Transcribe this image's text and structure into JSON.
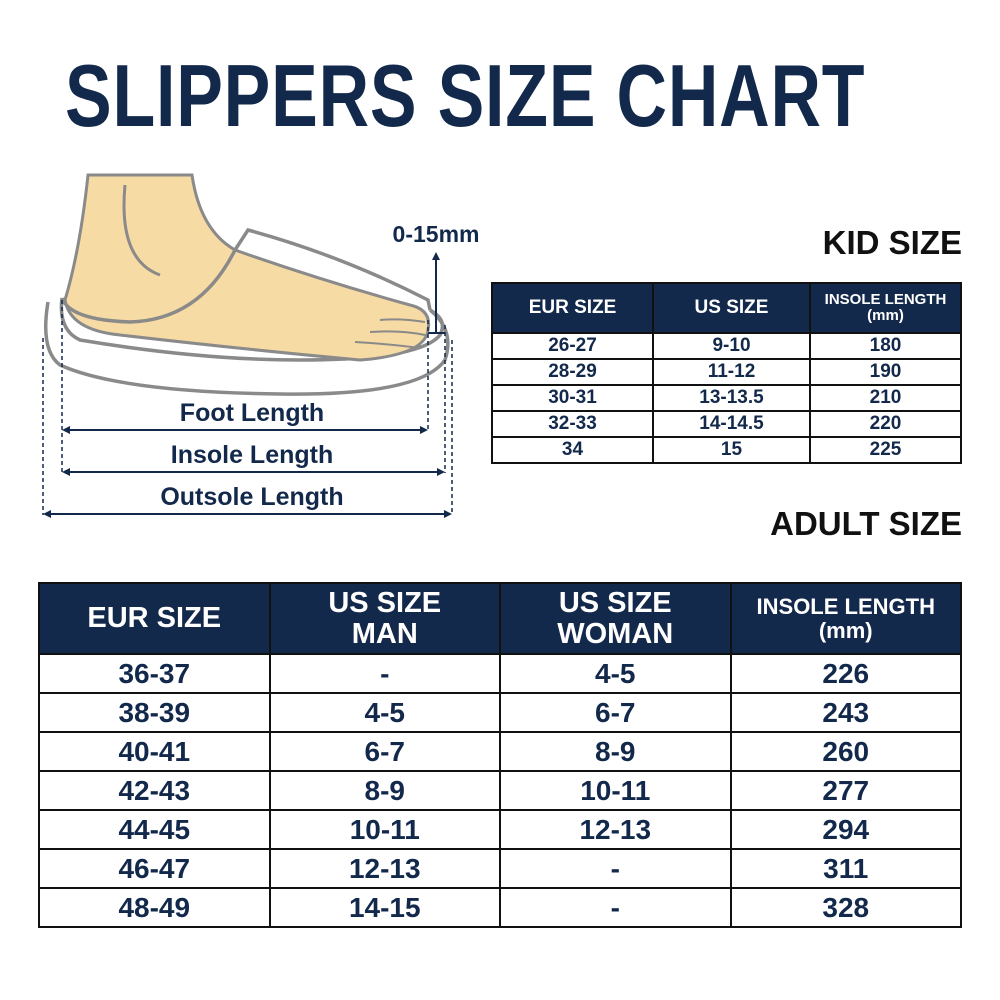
{
  "title": "SLIPPERS SIZE CHART",
  "colors": {
    "navy": "#13294b",
    "skin": "#f7dba4",
    "outline": "#8a8a8a"
  },
  "illustration": {
    "gap_label": "0-15mm",
    "foot_length": "Foot Length",
    "insole_length": "Insole Length",
    "outsole_length": "Outsole Length"
  },
  "kid": {
    "label": "KID SIZE",
    "headers": [
      "EUR SIZE",
      "US SIZE",
      "INSOLE LENGTH",
      "(mm)"
    ],
    "rows": [
      [
        "26-27",
        "9-10",
        "180"
      ],
      [
        "28-29",
        "11-12",
        "190"
      ],
      [
        "30-31",
        "13-13.5",
        "210"
      ],
      [
        "32-33",
        "14-14.5",
        "220"
      ],
      [
        "34",
        "15",
        "225"
      ]
    ]
  },
  "adult": {
    "label": "ADULT SIZE",
    "headers": [
      "EUR SIZE",
      "US SIZE",
      "MAN",
      "US SIZE",
      "WOMAN",
      "INSOLE LENGTH",
      "(mm)"
    ],
    "rows": [
      [
        "36-37",
        "-",
        "4-5",
        "226"
      ],
      [
        "38-39",
        "4-5",
        "6-7",
        "243"
      ],
      [
        "40-41",
        "6-7",
        "8-9",
        "260"
      ],
      [
        "42-43",
        "8-9",
        "10-11",
        "277"
      ],
      [
        "44-45",
        "10-11",
        "12-13",
        "294"
      ],
      [
        "46-47",
        "12-13",
        "-",
        "311"
      ],
      [
        "48-49",
        "14-15",
        "-",
        "328"
      ]
    ]
  }
}
